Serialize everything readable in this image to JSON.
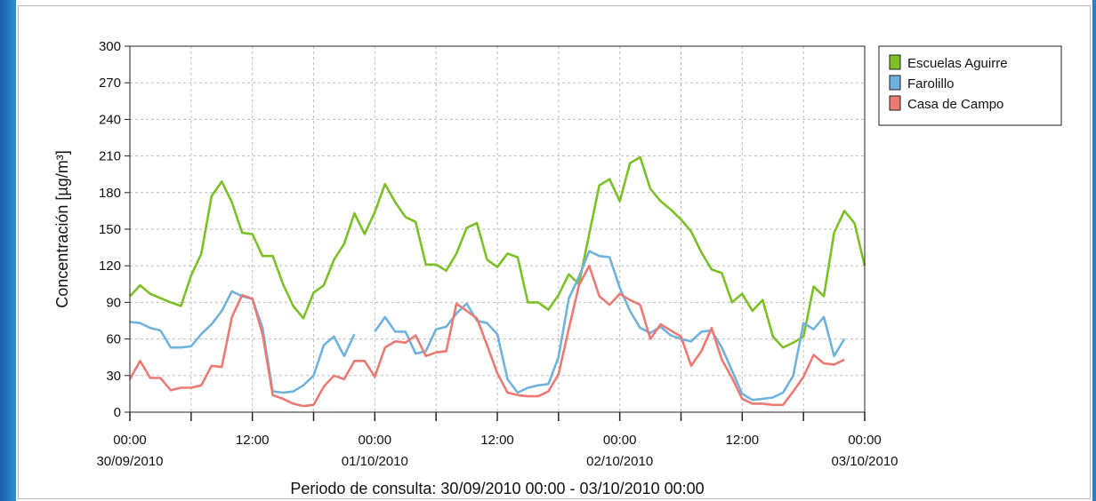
{
  "chart_data": {
    "type": "line",
    "ylabel": "Concentración [µg/m³]",
    "xlabel": "Periodo de consulta: 30/09/2010 00:00 - 03/10/2010 00:00",
    "ylim": [
      0,
      300
    ],
    "yticks": [
      0,
      30,
      60,
      90,
      120,
      150,
      180,
      210,
      240,
      270,
      300
    ],
    "x_unit": "hours from 30/09/2010 00:00",
    "xlim": [
      0,
      72
    ],
    "x_tick_labels": [
      {
        "x": 0,
        "time": "00:00",
        "date": "30/09/2010"
      },
      {
        "x": 12,
        "time": "12:00",
        "date": ""
      },
      {
        "x": 24,
        "time": "00:00",
        "date": "01/10/2010"
      },
      {
        "x": 36,
        "time": "12:00",
        "date": ""
      },
      {
        "x": 48,
        "time": "00:00",
        "date": "02/10/2010"
      },
      {
        "x": 60,
        "time": "12:00",
        "date": ""
      },
      {
        "x": 72,
        "time": "00:00",
        "date": "03/10/2010"
      }
    ],
    "grid": true,
    "legend_position": "top-right",
    "series": [
      {
        "name": "Escuelas Aguirre",
        "color": "#7cc026",
        "points": [
          [
            0,
            95
          ],
          [
            1,
            104
          ],
          [
            2,
            97
          ],
          [
            4,
            90
          ],
          [
            5,
            87
          ],
          [
            6,
            112
          ],
          [
            7,
            130
          ],
          [
            8,
            177
          ],
          [
            9,
            189
          ],
          [
            10,
            172
          ],
          [
            11,
            147
          ],
          [
            12,
            146
          ],
          [
            13,
            128
          ],
          [
            14,
            128
          ],
          [
            15,
            105
          ],
          [
            16,
            87
          ],
          [
            17,
            77
          ],
          [
            18,
            98
          ],
          [
            19,
            104
          ],
          [
            20,
            125
          ],
          [
            21,
            138
          ],
          [
            22,
            163
          ],
          [
            23,
            146
          ],
          [
            24,
            164
          ],
          [
            25,
            187
          ],
          [
            26,
            172
          ],
          [
            27,
            160
          ],
          [
            28,
            156
          ],
          [
            29,
            121
          ],
          [
            30,
            121
          ],
          [
            31,
            116
          ],
          [
            32,
            130
          ],
          [
            33,
            151
          ],
          [
            34,
            155
          ],
          [
            35,
            125
          ],
          [
            36,
            119
          ],
          [
            37,
            130
          ],
          [
            38,
            127
          ],
          [
            39,
            90
          ],
          [
            40,
            90
          ],
          [
            41,
            84
          ],
          [
            42,
            96
          ],
          [
            43,
            113
          ],
          [
            44,
            105
          ],
          [
            45,
            146
          ],
          [
            46,
            186
          ],
          [
            47,
            191
          ],
          [
            48,
            173
          ],
          [
            49,
            204
          ],
          [
            50,
            209
          ],
          [
            51,
            183
          ],
          [
            52,
            173
          ],
          [
            53,
            166
          ],
          [
            54,
            158
          ],
          [
            55,
            148
          ],
          [
            56,
            131
          ],
          [
            57,
            117
          ],
          [
            58,
            114
          ],
          [
            59,
            90
          ],
          [
            60,
            97
          ],
          [
            61,
            83
          ],
          [
            62,
            92
          ],
          [
            63,
            62
          ],
          [
            64,
            53
          ],
          [
            65,
            57
          ],
          [
            66,
            62
          ],
          [
            67,
            103
          ],
          [
            68,
            95
          ],
          [
            69,
            147
          ],
          [
            70,
            165
          ],
          [
            71,
            155
          ],
          [
            72,
            120
          ]
        ]
      },
      {
        "name": "Farolillo",
        "color": "#6fb3dc",
        "segments": [
          [
            [
              0,
              74
            ],
            [
              1,
              73
            ],
            [
              2,
              69
            ],
            [
              3,
              67
            ],
            [
              4,
              53
            ],
            [
              5,
              53
            ],
            [
              6,
              54
            ],
            [
              7,
              64
            ],
            [
              8,
              72
            ],
            [
              9,
              83
            ],
            [
              10,
              99
            ],
            [
              11,
              95
            ],
            [
              12,
              93
            ],
            [
              13,
              69
            ],
            [
              14,
              17
            ],
            [
              15,
              16
            ],
            [
              16,
              17
            ],
            [
              17,
              22
            ],
            [
              18,
              30
            ],
            [
              19,
              55
            ],
            [
              20,
              62
            ],
            [
              21,
              46
            ],
            [
              22,
              64
            ]
          ],
          [
            [
              24,
              66
            ],
            [
              25,
              78
            ],
            [
              26,
              66
            ],
            [
              27,
              66
            ],
            [
              28,
              48
            ],
            [
              29,
              50
            ],
            [
              30,
              68
            ],
            [
              31,
              70
            ],
            [
              32,
              81
            ],
            [
              33,
              89
            ],
            [
              34,
              75
            ],
            [
              35,
              73
            ],
            [
              36,
              64
            ],
            [
              37,
              27
            ],
            [
              38,
              16
            ],
            [
              39,
              20
            ],
            [
              40,
              22
            ],
            [
              41,
              23
            ],
            [
              42,
              45
            ],
            [
              43,
              93
            ],
            [
              44,
              111
            ],
            [
              45,
              132
            ],
            [
              46,
              128
            ],
            [
              47,
              127
            ],
            [
              48,
              102
            ],
            [
              49,
              83
            ],
            [
              50,
              69
            ],
            [
              51,
              65
            ],
            [
              52,
              70
            ],
            [
              53,
              63
            ],
            [
              54,
              60
            ],
            [
              55,
              58
            ],
            [
              56,
              66
            ],
            [
              57,
              67
            ],
            [
              58,
              53
            ],
            [
              59,
              34
            ],
            [
              60,
              15
            ],
            [
              61,
              10
            ],
            [
              62,
              11
            ],
            [
              63,
              12
            ],
            [
              64,
              16
            ],
            [
              65,
              30
            ],
            [
              66,
              73
            ],
            [
              67,
              68
            ],
            [
              68,
              78
            ],
            [
              69,
              46
            ],
            [
              70,
              60
            ]
          ]
        ]
      },
      {
        "name": "Casa de Campo",
        "color": "#ec7a74",
        "points": [
          [
            0,
            27
          ],
          [
            1,
            42
          ],
          [
            2,
            28
          ],
          [
            3,
            28
          ],
          [
            4,
            18
          ],
          [
            5,
            20
          ],
          [
            6,
            20
          ],
          [
            7,
            22
          ],
          [
            8,
            38
          ],
          [
            9,
            37
          ],
          [
            10,
            78
          ],
          [
            11,
            96
          ],
          [
            12,
            93
          ],
          [
            13,
            64
          ],
          [
            14,
            14
          ],
          [
            15,
            11
          ],
          [
            16,
            7
          ],
          [
            17,
            5
          ],
          [
            18,
            6
          ],
          [
            19,
            21
          ],
          [
            20,
            30
          ],
          [
            21,
            27
          ],
          [
            22,
            42
          ],
          [
            23,
            42
          ],
          [
            24,
            29
          ],
          [
            25,
            53
          ],
          [
            26,
            58
          ],
          [
            27,
            57
          ],
          [
            28,
            63
          ],
          [
            29,
            46
          ],
          [
            30,
            49
          ],
          [
            31,
            50
          ],
          [
            32,
            89
          ],
          [
            33,
            83
          ],
          [
            34,
            77
          ],
          [
            35,
            55
          ],
          [
            36,
            32
          ],
          [
            37,
            16
          ],
          [
            38,
            14
          ],
          [
            39,
            13
          ],
          [
            40,
            13
          ],
          [
            41,
            17
          ],
          [
            42,
            31
          ],
          [
            43,
            68
          ],
          [
            44,
            104
          ],
          [
            45,
            120
          ],
          [
            46,
            95
          ],
          [
            47,
            88
          ],
          [
            48,
            97
          ],
          [
            49,
            92
          ],
          [
            50,
            88
          ],
          [
            51,
            60
          ],
          [
            52,
            72
          ],
          [
            53,
            67
          ],
          [
            54,
            62
          ],
          [
            55,
            38
          ],
          [
            56,
            50
          ],
          [
            57,
            69
          ],
          [
            58,
            43
          ],
          [
            59,
            28
          ],
          [
            60,
            11
          ],
          [
            61,
            7
          ],
          [
            62,
            7
          ],
          [
            63,
            6
          ],
          [
            64,
            6
          ],
          [
            65,
            17
          ],
          [
            66,
            29
          ],
          [
            67,
            47
          ],
          [
            68,
            40
          ],
          [
            69,
            39
          ],
          [
            70,
            43
          ]
        ]
      }
    ]
  }
}
